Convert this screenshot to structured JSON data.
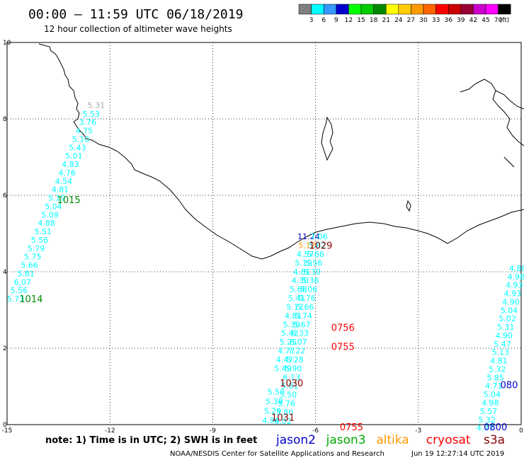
{
  "chart_data": {
    "type": "scatter",
    "title": "00:00 – 11:59 UTC 06/18/2019",
    "subtitle": "12 hour collection of altimeter wave heights",
    "xlabel": "",
    "ylabel": "",
    "xlim": [
      -15,
      0
    ],
    "ylim": [
      0,
      10
    ],
    "x_ticks": [
      -15,
      -12,
      -9,
      -6,
      -3,
      0
    ],
    "y_ticks": [
      0,
      2,
      4,
      6,
      8,
      10
    ],
    "grid": true,
    "colorbar": {
      "unit": "(ft)",
      "labels": [
        "3",
        "6",
        "9",
        "12",
        "15",
        "18",
        "21",
        "24",
        "27",
        "30",
        "33",
        "36",
        "39",
        "42",
        "45",
        "70"
      ],
      "colors": [
        "#808080",
        "#00ffff",
        "#3399ff",
        "#0000cc",
        "#00ff00",
        "#00cc00",
        "#008800",
        "#ffff00",
        "#ffcc00",
        "#ff9900",
        "#ff6600",
        "#ff0000",
        "#cc0000",
        "#990033",
        "#cc00cc",
        "#ff00ff",
        "#000000"
      ]
    },
    "series": [
      {
        "name": "track-1",
        "color": "#00ffff",
        "points": [
          {
            "x": -12.4,
            "y": 8.29,
            "label": "5.31",
            "color": "#aaaaaa"
          },
          {
            "x": -12.55,
            "y": 8.06,
            "label": "5.53"
          },
          {
            "x": -12.65,
            "y": 7.84,
            "label": "3.76"
          },
          {
            "x": -12.75,
            "y": 7.62,
            "label": "4.75"
          },
          {
            "x": -12.85,
            "y": 7.4,
            "label": "5.10"
          },
          {
            "x": -12.95,
            "y": 7.18,
            "label": "5.43"
          },
          {
            "x": -13.05,
            "y": 6.96,
            "label": "5.01"
          },
          {
            "x": -13.15,
            "y": 6.74,
            "label": "4.83"
          },
          {
            "x": -13.25,
            "y": 6.52,
            "label": "4.76"
          },
          {
            "x": -13.35,
            "y": 6.3,
            "label": "4.54"
          },
          {
            "x": -13.45,
            "y": 6.08,
            "label": "4.81"
          },
          {
            "x": -13.55,
            "y": 5.86,
            "label": "5.19"
          },
          {
            "x": -13.65,
            "y": 5.64,
            "label": "5.04"
          },
          {
            "x": -13.75,
            "y": 5.42,
            "label": "5.09"
          },
          {
            "x": -13.85,
            "y": 5.2,
            "label": "4.88"
          },
          {
            "x": -13.95,
            "y": 4.98,
            "label": "5.51"
          },
          {
            "x": -14.05,
            "y": 4.76,
            "label": "5.56"
          },
          {
            "x": -14.15,
            "y": 4.54,
            "label": "5.79"
          },
          {
            "x": -14.25,
            "y": 4.32,
            "label": "5.75"
          },
          {
            "x": -14.35,
            "y": 4.1,
            "label": "5.66"
          },
          {
            "x": -14.45,
            "y": 3.88,
            "label": "5.81"
          },
          {
            "x": -14.55,
            "y": 3.66,
            "label": "6.07"
          },
          {
            "x": -14.65,
            "y": 3.44,
            "label": "5.56"
          },
          {
            "x": -14.75,
            "y": 3.22,
            "label": "5.73"
          }
        ]
      },
      {
        "name": "track-2",
        "color": "#00ffff",
        "points": [
          {
            "x": -6.2,
            "y": 4.85,
            "label": "11.24",
            "color": "#0000cc"
          },
          {
            "x": -6.25,
            "y": 4.62,
            "label": "5.17",
            "color": "#ff9900"
          },
          {
            "x": -6.3,
            "y": 4.39,
            "label": "4.57"
          },
          {
            "x": -6.35,
            "y": 4.16,
            "label": "5.19"
          },
          {
            "x": -6.4,
            "y": 3.93,
            "label": "4.81"
          },
          {
            "x": -6.45,
            "y": 3.7,
            "label": "4.30"
          },
          {
            "x": -6.5,
            "y": 3.47,
            "label": "5.68"
          },
          {
            "x": -6.55,
            "y": 3.24,
            "label": "5.41"
          },
          {
            "x": -6.6,
            "y": 3.01,
            "label": "5.12"
          },
          {
            "x": -6.65,
            "y": 2.78,
            "label": "4.81"
          },
          {
            "x": -6.7,
            "y": 2.55,
            "label": "5.39"
          },
          {
            "x": -6.75,
            "y": 2.32,
            "label": "5.42"
          },
          {
            "x": -6.8,
            "y": 2.09,
            "label": "5.25"
          },
          {
            "x": -6.85,
            "y": 1.86,
            "label": "4.77"
          },
          {
            "x": -6.9,
            "y": 1.63,
            "label": "4.47"
          },
          {
            "x": -6.95,
            "y": 1.4,
            "label": "5.49"
          },
          {
            "x": -7.15,
            "y": 0.79,
            "label": "5.50"
          },
          {
            "x": -7.2,
            "y": 0.54,
            "label": "5.39"
          },
          {
            "x": -7.25,
            "y": 0.29,
            "label": "5.29"
          },
          {
            "x": -7.3,
            "y": 0.04,
            "label": "4.94"
          }
        ]
      },
      {
        "name": "track-3",
        "color": "#00ffff",
        "points": [
          {
            "x": -5.9,
            "y": 4.85,
            "label": "7.06"
          },
          {
            "x": -5.95,
            "y": 4.62,
            "label": "5.82"
          },
          {
            "x": -6.0,
            "y": 4.39,
            "label": "5.66"
          },
          {
            "x": -6.05,
            "y": 4.16,
            "label": "5.56"
          },
          {
            "x": -6.1,
            "y": 3.93,
            "label": "5.30"
          },
          {
            "x": -6.15,
            "y": 3.7,
            "label": "5.36"
          },
          {
            "x": -6.2,
            "y": 3.47,
            "label": "5.06"
          },
          {
            "x": -6.25,
            "y": 3.24,
            "label": "5.76"
          },
          {
            "x": -6.3,
            "y": 3.01,
            "label": "5.66"
          },
          {
            "x": -6.35,
            "y": 2.78,
            "label": "5.74"
          },
          {
            "x": -6.4,
            "y": 2.55,
            "label": "5.67"
          },
          {
            "x": -6.45,
            "y": 2.32,
            "label": "6.33"
          },
          {
            "x": -6.5,
            "y": 2.09,
            "label": "6.07"
          },
          {
            "x": -6.55,
            "y": 1.86,
            "label": "7.22"
          },
          {
            "x": -6.6,
            "y": 1.63,
            "label": "5.28"
          },
          {
            "x": -6.65,
            "y": 1.4,
            "label": "5.90"
          },
          {
            "x": -6.7,
            "y": 1.17,
            "label": "6.13"
          },
          {
            "x": -6.75,
            "y": 0.94,
            "label": "5.81"
          },
          {
            "x": -6.8,
            "y": 0.71,
            "label": "5.50"
          },
          {
            "x": -6.85,
            "y": 0.48,
            "label": "5.76"
          },
          {
            "x": -6.9,
            "y": 0.25,
            "label": "5.80"
          },
          {
            "x": -6.95,
            "y": 0.02,
            "label": "6.02"
          }
        ]
      },
      {
        "name": "track-4",
        "color": "#00ffff",
        "points": [
          {
            "x": -0.1,
            "y": 4.02,
            "label": "4.88"
          },
          {
            "x": -0.15,
            "y": 3.8,
            "label": "4.98"
          },
          {
            "x": -0.2,
            "y": 3.58,
            "label": "4.93"
          },
          {
            "x": -0.25,
            "y": 3.36,
            "label": "4.93"
          },
          {
            "x": -0.3,
            "y": 3.14,
            "label": "4.90"
          },
          {
            "x": -0.35,
            "y": 2.92,
            "label": "5.04"
          },
          {
            "x": -0.4,
            "y": 2.7,
            "label": "5.02"
          },
          {
            "x": -0.45,
            "y": 2.48,
            "label": "5.31"
          },
          {
            "x": -0.5,
            "y": 2.26,
            "label": "4.90"
          },
          {
            "x": -0.55,
            "y": 2.04,
            "label": "5.47"
          },
          {
            "x": -0.6,
            "y": 1.82,
            "label": "5.13"
          },
          {
            "x": -0.65,
            "y": 1.6,
            "label": "4.81"
          },
          {
            "x": -0.7,
            "y": 1.38,
            "label": "5.32"
          },
          {
            "x": -0.75,
            "y": 1.16,
            "label": "5.85"
          },
          {
            "x": -0.8,
            "y": 0.94,
            "label": "4.71"
          },
          {
            "x": -0.85,
            "y": 0.72,
            "label": "5.04"
          },
          {
            "x": -0.9,
            "y": 0.5,
            "label": "4.98"
          },
          {
            "x": -0.95,
            "y": 0.28,
            "label": "5.57"
          },
          {
            "x": -1.0,
            "y": 0.06,
            "label": "5.32"
          },
          {
            "x": -1.05,
            "y": -0.16,
            "label": "4.77"
          }
        ]
      }
    ],
    "time_labels": [
      {
        "text": "1015",
        "x": -13.2,
        "y": 5.8,
        "color": "#008800"
      },
      {
        "text": "1014",
        "x": -14.3,
        "y": 3.2,
        "color": "#008800"
      },
      {
        "text": "1029",
        "x": -5.85,
        "y": 4.6,
        "color": "#8b0000"
      },
      {
        "text": "0756",
        "x": -5.2,
        "y": 2.45,
        "color": "#ff0000"
      },
      {
        "text": "0755",
        "x": -5.2,
        "y": 1.95,
        "color": "#ff0000"
      },
      {
        "text": "1030",
        "x": -6.7,
        "y": 1.0,
        "color": "#8b0000"
      },
      {
        "text": "1031",
        "x": -6.95,
        "y": 0.1,
        "color": "#8b0000"
      },
      {
        "text": "0755",
        "x": -4.95,
        "y": -0.15,
        "color": "#ff0000"
      },
      {
        "text": "080",
        "x": -0.35,
        "y": 0.95,
        "color": "#0000cc"
      },
      {
        "text": "0800",
        "x": -0.75,
        "y": -0.15,
        "color": "#0000cc"
      }
    ]
  },
  "legend": {
    "note": "note: 1) Time is in UTC; 2) SWH is in feet",
    "satellites": [
      {
        "name": "jason2",
        "color": "#0000cc"
      },
      {
        "name": "jason3",
        "color": "#00aa00"
      },
      {
        "name": "altika",
        "color": "#ff9900"
      },
      {
        "name": "cryosat",
        "color": "#ff0000"
      },
      {
        "name": "s3a",
        "color": "#8b0000"
      }
    ]
  },
  "footer": {
    "credit": "NOAA/NESDIS Center for Satellite Applications and Research",
    "timestamp": "Jun 19 12:27:14 UTC 2019"
  }
}
